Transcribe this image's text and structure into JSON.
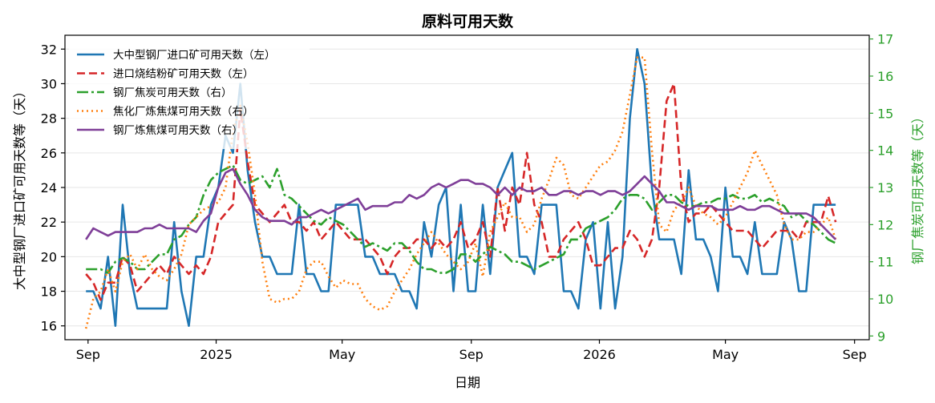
{
  "chart_data": {
    "type": "line",
    "title": "原料可用天数",
    "xlabel": "日期",
    "ylabel_left": "大中型钢厂进口矿可用天数等（天）",
    "ylabel_right": "钢厂焦炭可用天数等（天）",
    "x_start": "2024-08-30",
    "x_step_days": 7,
    "x_ticks": [
      {
        "date": "2024-09-01",
        "label": "Sep"
      },
      {
        "date": "2025-01-01",
        "label": "2025"
      },
      {
        "date": "2025-05-01",
        "label": "May"
      },
      {
        "date": "2025-09-01",
        "label": "Sep"
      },
      {
        "date": "2026-01-01",
        "label": "2026"
      },
      {
        "date": "2026-05-01",
        "label": "May"
      },
      {
        "date": "2026-09-01",
        "label": "Sep"
      }
    ],
    "x_range": [
      "2024-08-10",
      "2026-09-15"
    ],
    "ylim_left": [
      15.2,
      32.8
    ],
    "yticks_left": [
      16,
      18,
      20,
      22,
      24,
      26,
      28,
      30,
      32
    ],
    "ylim_right": [
      8.9,
      17.1
    ],
    "yticks_right": [
      9,
      10,
      11,
      12,
      13,
      14,
      15,
      16,
      17
    ],
    "grid": "horizontal",
    "legend_position": "top-left",
    "series": [
      {
        "name": "大中型钢厂进口矿可用天数（左）",
        "axis": "left",
        "color": "#1f77b4",
        "dash": "solid",
        "width": 2.6,
        "values": [
          18,
          18,
          17,
          20,
          16,
          23,
          19,
          17,
          17,
          17,
          17,
          17,
          22,
          18,
          16,
          20,
          20,
          23,
          24,
          27,
          26,
          30,
          25,
          22,
          20,
          20,
          19,
          19,
          19,
          23,
          19,
          19,
          18,
          18,
          23,
          23,
          23,
          23,
          20,
          20,
          19,
          19,
          19,
          18,
          18,
          17,
          22,
          20,
          23,
          24,
          18,
          23,
          18,
          18,
          23,
          19,
          24,
          25,
          26,
          20,
          20,
          19,
          23,
          23,
          23,
          18,
          18,
          17,
          21,
          22,
          17,
          22,
          17,
          20,
          28,
          32,
          30,
          24,
          21,
          21,
          21,
          19,
          25,
          21,
          21,
          20,
          18,
          24,
          20,
          20,
          19,
          22,
          19,
          19,
          19,
          22,
          21,
          18,
          18,
          23,
          23,
          23,
          23
        ]
      },
      {
        "name": "进口烧结粉矿可用天数（左）",
        "axis": "left",
        "color": "#d62728",
        "dash": "10,5",
        "width": 2.6,
        "values": [
          19,
          18.5,
          17.5,
          18.5,
          18.5,
          20,
          19.5,
          18,
          18.5,
          19,
          19.5,
          19,
          20,
          19.5,
          19,
          19.5,
          19,
          20,
          22,
          22.5,
          23,
          28.5,
          25.5,
          23,
          22.5,
          22,
          22.5,
          23,
          22,
          22,
          21.5,
          22,
          21,
          21.5,
          22,
          21.5,
          21,
          21,
          21,
          20.5,
          20,
          19,
          20,
          20.5,
          20.5,
          21,
          21,
          20.5,
          21,
          20.5,
          21,
          22,
          20.5,
          21,
          22,
          20,
          24,
          21.5,
          24,
          23,
          26,
          23,
          22,
          20,
          20,
          21,
          21.5,
          22,
          21,
          19.5,
          19.5,
          20,
          20.5,
          20.5,
          21.5,
          21,
          20,
          21,
          24,
          29,
          30,
          24,
          22,
          22.5,
          22.5,
          23,
          22.5,
          22,
          21.5,
          21.5,
          21.5,
          21,
          20.5,
          21,
          21.5,
          21.5,
          21.5,
          21,
          22,
          22,
          22,
          23.5,
          22
        ]
      },
      {
        "name": "钢厂焦炭可用天数（右）",
        "axis": "right",
        "color": "#2ca02c",
        "dash": "14,4,3,4",
        "width": 2.6,
        "values": [
          10.8,
          10.8,
          10.8,
          10.7,
          11,
          11.1,
          11,
          10.8,
          10.8,
          11,
          11.2,
          11.2,
          11.6,
          11.7,
          12,
          12.2,
          12.8,
          13.2,
          13.4,
          13.5,
          13.6,
          13.2,
          13.1,
          13.2,
          13.3,
          13,
          13.5,
          12.8,
          12.7,
          12.5,
          12.3,
          12.1,
          12,
          12.2,
          12.1,
          12,
          11.8,
          11.6,
          11.4,
          11.5,
          11.4,
          11.3,
          11.5,
          11.5,
          11.3,
          11,
          10.8,
          10.8,
          10.7,
          10.7,
          10.8,
          11.2,
          11.2,
          11,
          11.2,
          11.4,
          11.3,
          11.2,
          11,
          11,
          10.9,
          10.8,
          10.9,
          11,
          11.1,
          11.2,
          11.6,
          11.6,
          11.9,
          12,
          12.1,
          12.2,
          12.4,
          12.7,
          12.8,
          12.8,
          12.7,
          12.4,
          12.6,
          12.8,
          12.8,
          12.6,
          12.5,
          12.5,
          12.6,
          12.6,
          12.7,
          12.7,
          12.8,
          12.7,
          12.7,
          12.8,
          12.6,
          12.7,
          12.6,
          12.5,
          12.2,
          12.3,
          12.1,
          12,
          11.8,
          11.6,
          11.5
        ]
      },
      {
        "name": "焦化厂炼焦煤可用天数（右）",
        "axis": "right",
        "color": "#ff7f0e",
        "dash": "2,4",
        "width": 2.6,
        "values": [
          9.2,
          10,
          10.2,
          10.8,
          10.2,
          11,
          11.2,
          10.8,
          11.2,
          10.8,
          10.6,
          10.5,
          10.8,
          11.2,
          12,
          12.2,
          12.4,
          12.5,
          12.6,
          13,
          14.5,
          15.2,
          14.2,
          12.8,
          11,
          10,
          9.9,
          10,
          10,
          10.2,
          10.8,
          11,
          11,
          10.6,
          10.3,
          10.5,
          10.4,
          10.4,
          10,
          9.8,
          9.7,
          9.8,
          10.2,
          10.5,
          10.8,
          11.2,
          11.5,
          11.8,
          11.5,
          11.2,
          11,
          10.8,
          11,
          11.5,
          10.6,
          11.8,
          12.2,
          12.6,
          12.2,
          12.2,
          11.8,
          12,
          12.7,
          13.2,
          13.8,
          13.6,
          12.8,
          12.7,
          13,
          13.3,
          13.6,
          13.7,
          14,
          14.5,
          15.5,
          16.5,
          16.5,
          14,
          12,
          11.8,
          12.4,
          12.6,
          13,
          12.5,
          12.3,
          12.2,
          12,
          12.2,
          12.6,
          13,
          13.4,
          14,
          13.6,
          13.2,
          12.8,
          12,
          11.6,
          11.6,
          11.8,
          11.8,
          12,
          12.2,
          11.6
        ]
      },
      {
        "name": "钢厂炼焦煤可用天数（右）",
        "axis": "right",
        "color": "#7f3f98",
        "dash": "solid",
        "width": 2.6,
        "values": [
          11.6,
          11.9,
          11.8,
          11.7,
          11.8,
          11.8,
          11.8,
          11.8,
          11.9,
          11.9,
          12,
          11.9,
          11.9,
          11.9,
          11.9,
          11.8,
          12.1,
          12.3,
          13,
          13.4,
          13.5,
          13.1,
          12.8,
          12.4,
          12.2,
          12.1,
          12.1,
          12.1,
          12,
          12.2,
          12.2,
          12.3,
          12.4,
          12.3,
          12.4,
          12.5,
          12.6,
          12.7,
          12.4,
          12.5,
          12.5,
          12.5,
          12.6,
          12.6,
          12.8,
          12.7,
          12.8,
          13,
          13.1,
          13,
          13.1,
          13.2,
          13.2,
          13.1,
          13.1,
          13,
          12.8,
          13,
          12.8,
          13,
          12.9,
          12.9,
          13,
          12.8,
          12.8,
          12.9,
          12.9,
          12.8,
          12.9,
          12.9,
          12.8,
          12.9,
          12.9,
          12.8,
          12.9,
          13.1,
          13.3,
          13.1,
          12.9,
          12.6,
          12.6,
          12.5,
          12.4,
          12.5,
          12.5,
          12.5,
          12.4,
          12.4,
          12.4,
          12.5,
          12.4,
          12.4,
          12.5,
          12.5,
          12.4,
          12.3,
          12.3,
          12.3,
          12.3,
          12.2,
          12,
          11.8,
          11.6
        ]
      }
    ]
  }
}
